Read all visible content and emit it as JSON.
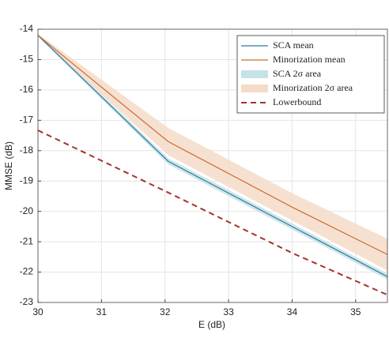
{
  "chart_data": {
    "type": "line",
    "x_label": "E (dB)",
    "y_label": "MMSE (dB)",
    "x": [
      30,
      32.05,
      34,
      35.5
    ],
    "xlim": [
      30,
      35.5
    ],
    "xticks": [
      30,
      31,
      32,
      33,
      34,
      35
    ],
    "ylim": [
      -23,
      -14
    ],
    "yticks": [
      -14,
      -15,
      -16,
      -17,
      -18,
      -19,
      -20,
      -21,
      -22,
      -23
    ],
    "grid": true,
    "legend": "upper right",
    "series": [
      {
        "name": "SCA mean",
        "color": "#2d7c9c",
        "style": "line",
        "values": [
          -14.2,
          -18.35,
          -20.5,
          -22.15
        ]
      },
      {
        "name": "Minorization mean",
        "color": "#cd6a30",
        "style": "line",
        "values": [
          -14.2,
          -17.7,
          -19.86,
          -21.42
        ]
      },
      {
        "name": "SCA 2σ area",
        "color": "#c6e2e8",
        "style": "band",
        "upper": [
          -14.15,
          -18.25,
          -20.4,
          -22.05
        ],
        "lower": [
          -14.25,
          -18.45,
          -20.6,
          -22.25
        ]
      },
      {
        "name": "Minorization 2σ area",
        "color": "#f4dcc9",
        "style": "band",
        "upper": [
          -14.15,
          -17.25,
          -19.4,
          -20.9
        ],
        "lower": [
          -14.25,
          -18.15,
          -20.3,
          -21.95
        ]
      },
      {
        "name": "Lowerbound",
        "color": "#a2352c",
        "style": "dashed",
        "values": [
          -17.33,
          -19.38,
          -21.37,
          -22.75
        ]
      }
    ]
  }
}
